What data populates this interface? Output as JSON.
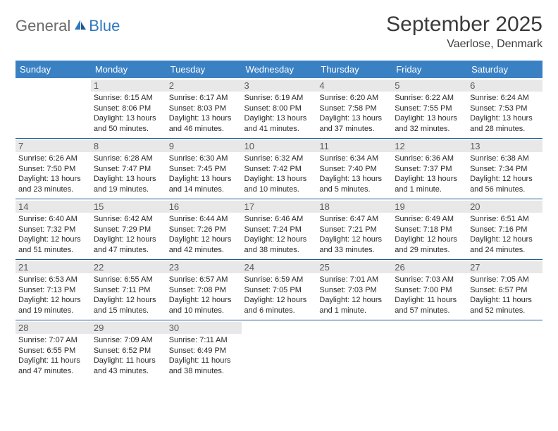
{
  "logo": {
    "general": "General",
    "blue": "Blue"
  },
  "title": "September 2025",
  "location": "Vaerlose, Denmark",
  "colors": {
    "header_bg": "#3a81c4",
    "header_fg": "#ffffff",
    "row_border": "#1f5a93",
    "daynum_bg": "#e8e8e8",
    "daynum_fg": "#5a5a5a",
    "text": "#2a2a2a",
    "logo_gray": "#6a6a6a",
    "logo_blue": "#2f78bd"
  },
  "weekdays": [
    "Sunday",
    "Monday",
    "Tuesday",
    "Wednesday",
    "Thursday",
    "Friday",
    "Saturday"
  ],
  "weeks": [
    [
      {
        "day": "",
        "sunrise": "",
        "sunset": "",
        "daylight": ""
      },
      {
        "day": "1",
        "sunrise": "Sunrise: 6:15 AM",
        "sunset": "Sunset: 8:06 PM",
        "daylight": "Daylight: 13 hours and 50 minutes."
      },
      {
        "day": "2",
        "sunrise": "Sunrise: 6:17 AM",
        "sunset": "Sunset: 8:03 PM",
        "daylight": "Daylight: 13 hours and 46 minutes."
      },
      {
        "day": "3",
        "sunrise": "Sunrise: 6:19 AM",
        "sunset": "Sunset: 8:00 PM",
        "daylight": "Daylight: 13 hours and 41 minutes."
      },
      {
        "day": "4",
        "sunrise": "Sunrise: 6:20 AM",
        "sunset": "Sunset: 7:58 PM",
        "daylight": "Daylight: 13 hours and 37 minutes."
      },
      {
        "day": "5",
        "sunrise": "Sunrise: 6:22 AM",
        "sunset": "Sunset: 7:55 PM",
        "daylight": "Daylight: 13 hours and 32 minutes."
      },
      {
        "day": "6",
        "sunrise": "Sunrise: 6:24 AM",
        "sunset": "Sunset: 7:53 PM",
        "daylight": "Daylight: 13 hours and 28 minutes."
      }
    ],
    [
      {
        "day": "7",
        "sunrise": "Sunrise: 6:26 AM",
        "sunset": "Sunset: 7:50 PM",
        "daylight": "Daylight: 13 hours and 23 minutes."
      },
      {
        "day": "8",
        "sunrise": "Sunrise: 6:28 AM",
        "sunset": "Sunset: 7:47 PM",
        "daylight": "Daylight: 13 hours and 19 minutes."
      },
      {
        "day": "9",
        "sunrise": "Sunrise: 6:30 AM",
        "sunset": "Sunset: 7:45 PM",
        "daylight": "Daylight: 13 hours and 14 minutes."
      },
      {
        "day": "10",
        "sunrise": "Sunrise: 6:32 AM",
        "sunset": "Sunset: 7:42 PM",
        "daylight": "Daylight: 13 hours and 10 minutes."
      },
      {
        "day": "11",
        "sunrise": "Sunrise: 6:34 AM",
        "sunset": "Sunset: 7:40 PM",
        "daylight": "Daylight: 13 hours and 5 minutes."
      },
      {
        "day": "12",
        "sunrise": "Sunrise: 6:36 AM",
        "sunset": "Sunset: 7:37 PM",
        "daylight": "Daylight: 13 hours and 1 minute."
      },
      {
        "day": "13",
        "sunrise": "Sunrise: 6:38 AM",
        "sunset": "Sunset: 7:34 PM",
        "daylight": "Daylight: 12 hours and 56 minutes."
      }
    ],
    [
      {
        "day": "14",
        "sunrise": "Sunrise: 6:40 AM",
        "sunset": "Sunset: 7:32 PM",
        "daylight": "Daylight: 12 hours and 51 minutes."
      },
      {
        "day": "15",
        "sunrise": "Sunrise: 6:42 AM",
        "sunset": "Sunset: 7:29 PM",
        "daylight": "Daylight: 12 hours and 47 minutes."
      },
      {
        "day": "16",
        "sunrise": "Sunrise: 6:44 AM",
        "sunset": "Sunset: 7:26 PM",
        "daylight": "Daylight: 12 hours and 42 minutes."
      },
      {
        "day": "17",
        "sunrise": "Sunrise: 6:46 AM",
        "sunset": "Sunset: 7:24 PM",
        "daylight": "Daylight: 12 hours and 38 minutes."
      },
      {
        "day": "18",
        "sunrise": "Sunrise: 6:47 AM",
        "sunset": "Sunset: 7:21 PM",
        "daylight": "Daylight: 12 hours and 33 minutes."
      },
      {
        "day": "19",
        "sunrise": "Sunrise: 6:49 AM",
        "sunset": "Sunset: 7:18 PM",
        "daylight": "Daylight: 12 hours and 29 minutes."
      },
      {
        "day": "20",
        "sunrise": "Sunrise: 6:51 AM",
        "sunset": "Sunset: 7:16 PM",
        "daylight": "Daylight: 12 hours and 24 minutes."
      }
    ],
    [
      {
        "day": "21",
        "sunrise": "Sunrise: 6:53 AM",
        "sunset": "Sunset: 7:13 PM",
        "daylight": "Daylight: 12 hours and 19 minutes."
      },
      {
        "day": "22",
        "sunrise": "Sunrise: 6:55 AM",
        "sunset": "Sunset: 7:11 PM",
        "daylight": "Daylight: 12 hours and 15 minutes."
      },
      {
        "day": "23",
        "sunrise": "Sunrise: 6:57 AM",
        "sunset": "Sunset: 7:08 PM",
        "daylight": "Daylight: 12 hours and 10 minutes."
      },
      {
        "day": "24",
        "sunrise": "Sunrise: 6:59 AM",
        "sunset": "Sunset: 7:05 PM",
        "daylight": "Daylight: 12 hours and 6 minutes."
      },
      {
        "day": "25",
        "sunrise": "Sunrise: 7:01 AM",
        "sunset": "Sunset: 7:03 PM",
        "daylight": "Daylight: 12 hours and 1 minute."
      },
      {
        "day": "26",
        "sunrise": "Sunrise: 7:03 AM",
        "sunset": "Sunset: 7:00 PM",
        "daylight": "Daylight: 11 hours and 57 minutes."
      },
      {
        "day": "27",
        "sunrise": "Sunrise: 7:05 AM",
        "sunset": "Sunset: 6:57 PM",
        "daylight": "Daylight: 11 hours and 52 minutes."
      }
    ],
    [
      {
        "day": "28",
        "sunrise": "Sunrise: 7:07 AM",
        "sunset": "Sunset: 6:55 PM",
        "daylight": "Daylight: 11 hours and 47 minutes."
      },
      {
        "day": "29",
        "sunrise": "Sunrise: 7:09 AM",
        "sunset": "Sunset: 6:52 PM",
        "daylight": "Daylight: 11 hours and 43 minutes."
      },
      {
        "day": "30",
        "sunrise": "Sunrise: 7:11 AM",
        "sunset": "Sunset: 6:49 PM",
        "daylight": "Daylight: 11 hours and 38 minutes."
      },
      {
        "day": "",
        "sunrise": "",
        "sunset": "",
        "daylight": ""
      },
      {
        "day": "",
        "sunrise": "",
        "sunset": "",
        "daylight": ""
      },
      {
        "day": "",
        "sunrise": "",
        "sunset": "",
        "daylight": ""
      },
      {
        "day": "",
        "sunrise": "",
        "sunset": "",
        "daylight": ""
      }
    ]
  ]
}
